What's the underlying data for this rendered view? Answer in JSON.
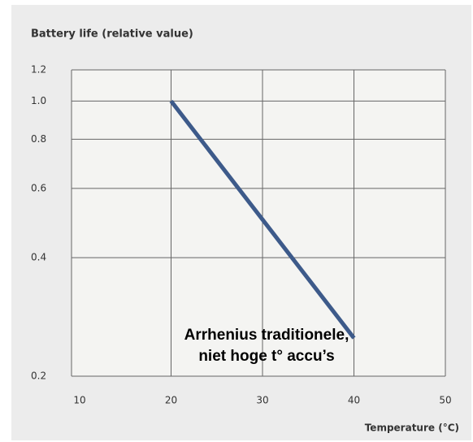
{
  "chart_data": {
    "type": "line",
    "title": "Battery life (relative value)",
    "xlabel": "Temperature (°C)",
    "x": [
      20,
      30,
      40
    ],
    "values": [
      1,
      0.5,
      0.25
    ],
    "color": "#3d5a8a",
    "xlim": [
      10,
      50
    ],
    "xticks": [
      10,
      20,
      30,
      40,
      50
    ],
    "ylim": [
      0.2,
      1.2
    ],
    "yticks": [
      0.2,
      0.4,
      0.6,
      0.8,
      {
        "value": 1,
        "label": "1.0"
      },
      1.2
    ],
    "yscale": "log",
    "grid": true,
    "annotation": [
      "Arrhenius traditionele,",
      "niet hoge t° accu’s"
    ]
  }
}
